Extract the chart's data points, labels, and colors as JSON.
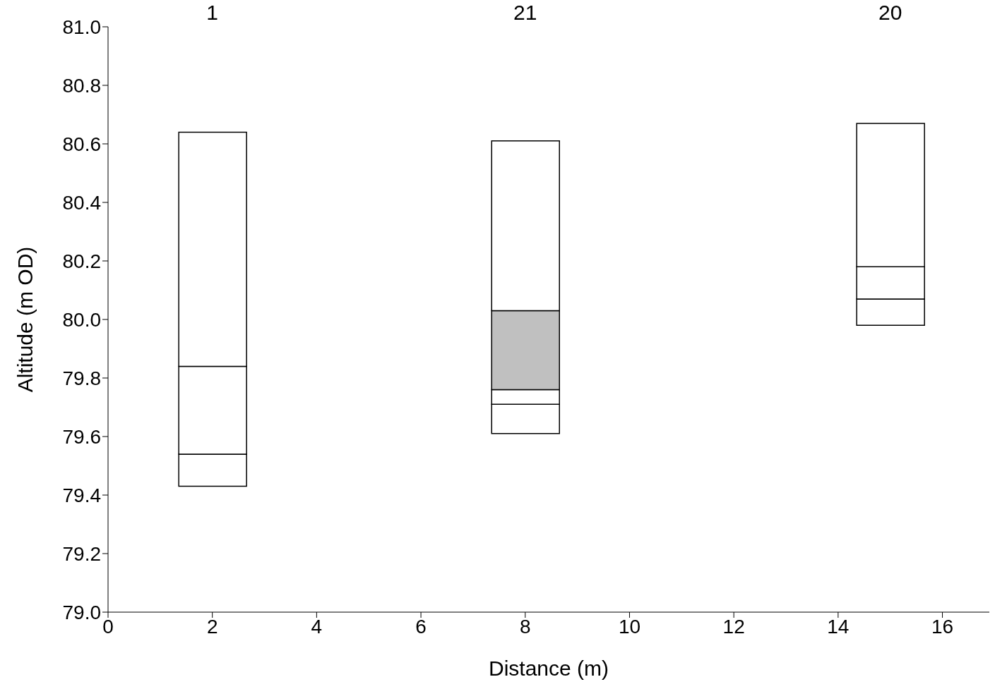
{
  "chart_data": {
    "type": "bar",
    "xlabel": "Distance (m)",
    "ylabel": "Altitude (m OD)",
    "x": [
      2,
      8,
      15
    ],
    "series": [
      {
        "color": "#ffffff",
        "base": [
          79.43,
          79.61,
          79.98
        ],
        "values": [
          0.11,
          0.1,
          0.09
        ]
      },
      {
        "color": "#ffffff",
        "base": [
          79.54,
          79.71,
          80.07
        ],
        "values": [
          0.3,
          0.05,
          0.11
        ]
      },
      {
        "color": "#ffffff",
        "colors": [
          "#ffffff",
          "#c0c0c0",
          "#ffffff"
        ],
        "base": [
          79.84,
          79.76,
          80.18
        ],
        "values": [
          0.8,
          0.27,
          0.49
        ]
      },
      {
        "color": "#ffffff",
        "base": [
          null,
          80.03,
          null
        ],
        "values": [
          null,
          0.58,
          null
        ]
      }
    ],
    "xlim": [
      0,
      16.9
    ],
    "xticks": [
      0,
      2,
      4,
      6,
      8,
      10,
      12,
      14,
      16
    ],
    "ylim": [
      79,
      81
    ],
    "yticks": [
      {
        "value": 79,
        "label": "79.0"
      },
      79.2,
      79.4,
      79.6,
      79.8,
      {
        "value": 80,
        "label": "80.0"
      },
      80.2,
      80.4,
      80.6,
      80.8,
      {
        "value": 81,
        "label": "81.0"
      }
    ],
    "grid": false,
    "legend": false,
    "annotations": [
      "1",
      "21",
      "20"
    ]
  }
}
